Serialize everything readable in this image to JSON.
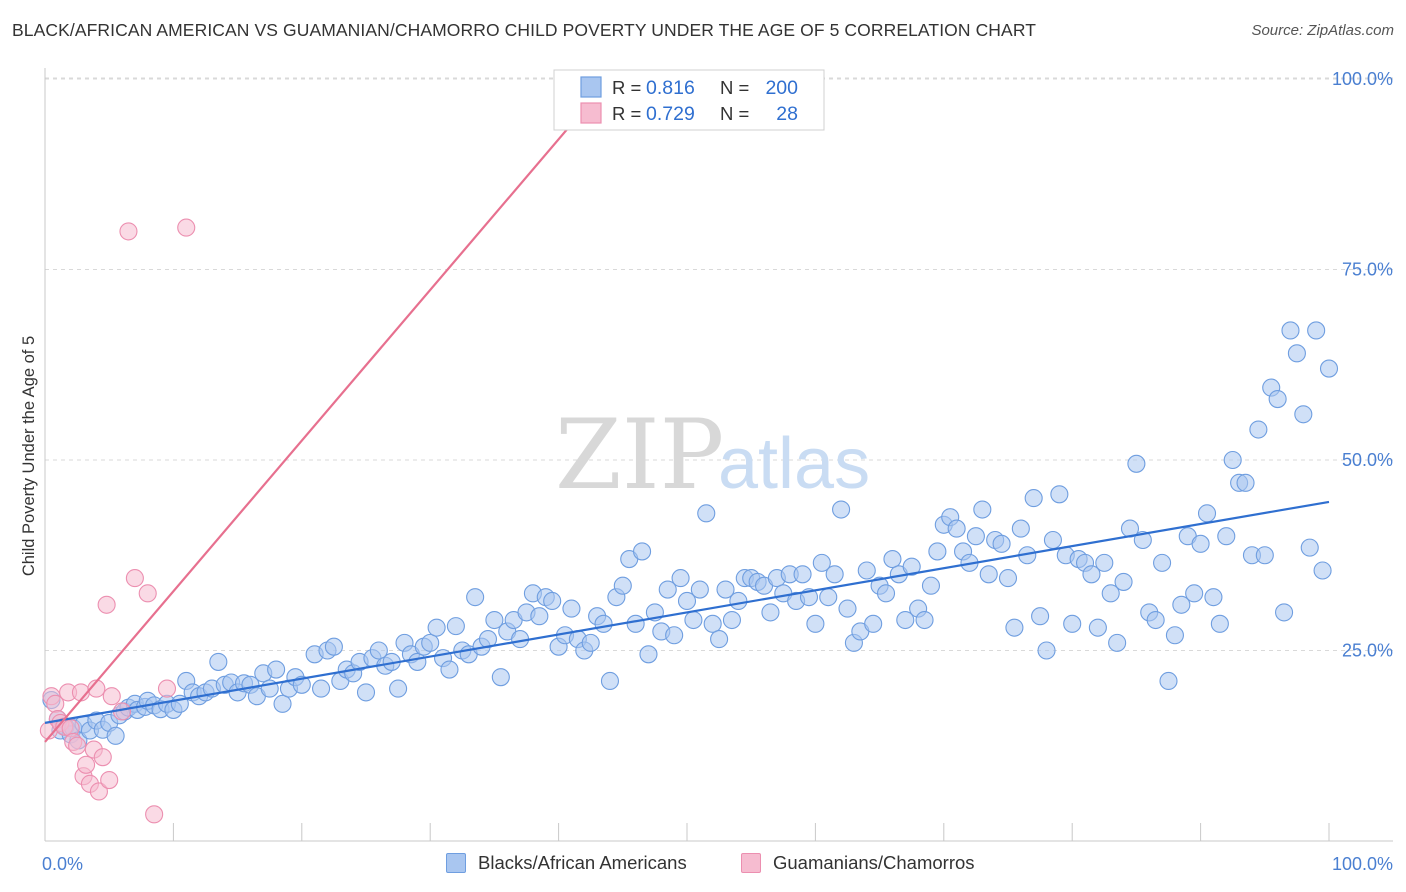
{
  "title": "BLACK/AFRICAN AMERICAN VS GUAMANIAN/CHAMORRO CHILD POVERTY UNDER THE AGE OF 5 CORRELATION CHART",
  "source": "Source: ZipAtlas.com",
  "watermark": {
    "zip": "ZIP",
    "atlas": "atlas"
  },
  "colors": {
    "blue_fill": "#a9c6f0",
    "blue_stroke": "#6f9ee0",
    "blue_line": "#2f6fd0",
    "pink_fill": "#f6bcd0",
    "pink_stroke": "#ec8fb0",
    "pink_line": "#e7708f",
    "grid": "#d9d9d9",
    "axis_text": "#4a7fd1"
  },
  "legend": {
    "row1": {
      "r_label": "R =",
      "r_value": "0.816",
      "n_label": "N =",
      "n_value": "200"
    },
    "row2": {
      "r_label": "R =",
      "r_value": "0.729",
      "n_label": "N =",
      "n_value": "28"
    }
  },
  "bottom_legend": {
    "blue": "Blacks/African Americans",
    "pink": "Guamanians/Chamorros"
  },
  "chart_data": {
    "type": "scatter",
    "title": "BLACK/AFRICAN AMERICAN VS GUAMANIAN/CHAMORRO CHILD POVERTY UNDER THE AGE OF 5 CORRELATION CHART",
    "xlabel": "",
    "ylabel": "Child Poverty Under the Age of 5",
    "xlim": [
      0,
      105
    ],
    "ylim": [
      0,
      105
    ],
    "x_tick_labels": [
      "0.0%",
      "100.0%"
    ],
    "y_ticks": [
      25,
      50,
      75,
      100
    ],
    "y_tick_labels": [
      "25.0%",
      "50.0%",
      "75.0%",
      "100.0%"
    ],
    "legend_position": "top-center",
    "series": [
      {
        "name": "Blacks/African Americans",
        "r": 0.816,
        "n": 200,
        "trend": [
          [
            0,
            15.5
          ],
          [
            100,
            44.5
          ]
        ],
        "points": [
          [
            0.5,
            18.5
          ],
          [
            1,
            16
          ],
          [
            1.2,
            14.5
          ],
          [
            1.6,
            15
          ],
          [
            2,
            14
          ],
          [
            2.2,
            14.8
          ],
          [
            2.6,
            13.2
          ],
          [
            3,
            15.3
          ],
          [
            3.5,
            14.5
          ],
          [
            4,
            15.8
          ],
          [
            4.5,
            14.6
          ],
          [
            5,
            15.5
          ],
          [
            5.5,
            13.8
          ],
          [
            5.8,
            16.5
          ],
          [
            6.2,
            17
          ],
          [
            6.5,
            17.5
          ],
          [
            7,
            18
          ],
          [
            7.2,
            17.2
          ],
          [
            7.8,
            17.6
          ],
          [
            8,
            18.4
          ],
          [
            8.5,
            17.8
          ],
          [
            9,
            17.3
          ],
          [
            9.5,
            18
          ],
          [
            10,
            17.2
          ],
          [
            10.5,
            18
          ],
          [
            11,
            21
          ],
          [
            11.5,
            19.5
          ],
          [
            12,
            19
          ],
          [
            12.5,
            19.5
          ],
          [
            13,
            20
          ],
          [
            13.5,
            23.5
          ],
          [
            14,
            20.5
          ],
          [
            14.5,
            20.8
          ],
          [
            15,
            19.5
          ],
          [
            15.5,
            20.7
          ],
          [
            16,
            20.5
          ],
          [
            16.5,
            19
          ],
          [
            17,
            22
          ],
          [
            17.5,
            20
          ],
          [
            18,
            22.5
          ],
          [
            18.5,
            18
          ],
          [
            19,
            20
          ],
          [
            19.5,
            21.5
          ],
          [
            20,
            20.5
          ],
          [
            21,
            24.5
          ],
          [
            21.5,
            20
          ],
          [
            22,
            25
          ],
          [
            22.5,
            25.5
          ],
          [
            23,
            21
          ],
          [
            23.5,
            22.5
          ],
          [
            24,
            22
          ],
          [
            24.5,
            23.5
          ],
          [
            25,
            19.5
          ],
          [
            25.5,
            24
          ],
          [
            26,
            25
          ],
          [
            26.5,
            23
          ],
          [
            27,
            23.5
          ],
          [
            27.5,
            20
          ],
          [
            28,
            26
          ],
          [
            28.5,
            24.5
          ],
          [
            29,
            23.5
          ],
          [
            29.5,
            25.5
          ],
          [
            30,
            26
          ],
          [
            30.5,
            28
          ],
          [
            31,
            24
          ],
          [
            31.5,
            22.5
          ],
          [
            32,
            28.2
          ],
          [
            32.5,
            25
          ],
          [
            33,
            24.5
          ],
          [
            33.5,
            32
          ],
          [
            34,
            25.5
          ],
          [
            34.5,
            26.5
          ],
          [
            35,
            29
          ],
          [
            35.5,
            21.5
          ],
          [
            36,
            27.5
          ],
          [
            36.5,
            29
          ],
          [
            37,
            26.5
          ],
          [
            37.5,
            30
          ],
          [
            38,
            32.5
          ],
          [
            38.5,
            29.5
          ],
          [
            39,
            32
          ],
          [
            39.5,
            31.5
          ],
          [
            40,
            25.5
          ],
          [
            40.5,
            27
          ],
          [
            41,
            30.5
          ],
          [
            41.5,
            26.5
          ],
          [
            42,
            25
          ],
          [
            42.5,
            26
          ],
          [
            43,
            29.5
          ],
          [
            43.5,
            28.5
          ],
          [
            44,
            21
          ],
          [
            44.5,
            32
          ],
          [
            45,
            33.5
          ],
          [
            45.5,
            37
          ],
          [
            46,
            28.5
          ],
          [
            46.5,
            38
          ],
          [
            47,
            24.5
          ],
          [
            47.5,
            30
          ],
          [
            48,
            27.5
          ],
          [
            48.5,
            33
          ],
          [
            49,
            27
          ],
          [
            49.5,
            34.5
          ],
          [
            50,
            31.5
          ],
          [
            50.5,
            29
          ],
          [
            51,
            33
          ],
          [
            51.5,
            43
          ],
          [
            52,
            28.5
          ],
          [
            52.5,
            26.5
          ],
          [
            53,
            33
          ],
          [
            53.5,
            29
          ],
          [
            54,
            31.5
          ],
          [
            54.5,
            34.5
          ],
          [
            55,
            34.5
          ],
          [
            55.5,
            34
          ],
          [
            56,
            33.5
          ],
          [
            56.5,
            30
          ],
          [
            57,
            34.5
          ],
          [
            57.5,
            32.5
          ],
          [
            58,
            35
          ],
          [
            58.5,
            31.5
          ],
          [
            59,
            35
          ],
          [
            59.5,
            32
          ],
          [
            60,
            28.5
          ],
          [
            60.5,
            36.5
          ],
          [
            61,
            32
          ],
          [
            61.5,
            35
          ],
          [
            62,
            43.5
          ],
          [
            62.5,
            30.5
          ],
          [
            63,
            26
          ],
          [
            63.5,
            27.5
          ],
          [
            64,
            35.5
          ],
          [
            64.5,
            28.5
          ],
          [
            65,
            33.5
          ],
          [
            65.5,
            32.5
          ],
          [
            66,
            37
          ],
          [
            66.5,
            35
          ],
          [
            67,
            29
          ],
          [
            67.5,
            36
          ],
          [
            68,
            30.5
          ],
          [
            68.5,
            29
          ],
          [
            69,
            33.5
          ],
          [
            69.5,
            38
          ],
          [
            70,
            41.5
          ],
          [
            70.5,
            42.5
          ],
          [
            71,
            41
          ],
          [
            71.5,
            38
          ],
          [
            72,
            36.5
          ],
          [
            72.5,
            40
          ],
          [
            73,
            43.5
          ],
          [
            73.5,
            35
          ],
          [
            74,
            39.5
          ],
          [
            74.5,
            39
          ],
          [
            75,
            34.5
          ],
          [
            75.5,
            28
          ],
          [
            76,
            41
          ],
          [
            76.5,
            37.5
          ],
          [
            77,
            45
          ],
          [
            77.5,
            29.5
          ],
          [
            78,
            25
          ],
          [
            78.5,
            39.5
          ],
          [
            79,
            45.5
          ],
          [
            79.5,
            37.5
          ],
          [
            80,
            28.5
          ],
          [
            80.5,
            37
          ],
          [
            81,
            36.5
          ],
          [
            81.5,
            35
          ],
          [
            82,
            28
          ],
          [
            82.5,
            36.5
          ],
          [
            83,
            32.5
          ],
          [
            83.5,
            26
          ],
          [
            84,
            34
          ],
          [
            84.5,
            41
          ],
          [
            85,
            49.5
          ],
          [
            85.5,
            39.5
          ],
          [
            86,
            30
          ],
          [
            86.5,
            29
          ],
          [
            87,
            36.5
          ],
          [
            87.5,
            21
          ],
          [
            88,
            27
          ],
          [
            88.5,
            31
          ],
          [
            89,
            40
          ],
          [
            89.5,
            32.5
          ],
          [
            90,
            39
          ],
          [
            90.5,
            43
          ],
          [
            91,
            32
          ],
          [
            91.5,
            28.5
          ],
          [
            92,
            40
          ],
          [
            92.5,
            50
          ],
          [
            93,
            47
          ],
          [
            93.5,
            47
          ],
          [
            94,
            37.5
          ],
          [
            94.5,
            54
          ],
          [
            95,
            37.5
          ],
          [
            95.5,
            59.5
          ],
          [
            96,
            58
          ],
          [
            96.5,
            30
          ],
          [
            97,
            67
          ],
          [
            97.5,
            64
          ],
          [
            98,
            56
          ],
          [
            98.5,
            38.5
          ],
          [
            99,
            67
          ],
          [
            99.5,
            35.5
          ],
          [
            100,
            62
          ]
        ]
      },
      {
        "name": "Guamanians/Chamorros",
        "r": 0.729,
        "n": 28,
        "trend": [
          [
            0,
            13
          ],
          [
            44,
            100
          ]
        ],
        "points": [
          [
            0.3,
            14.5
          ],
          [
            0.5,
            19
          ],
          [
            0.8,
            18
          ],
          [
            1,
            16
          ],
          [
            1.2,
            15.5
          ],
          [
            1.5,
            15
          ],
          [
            1.8,
            19.5
          ],
          [
            2,
            14.8
          ],
          [
            2.2,
            13
          ],
          [
            2.5,
            12.5
          ],
          [
            2.8,
            19.5
          ],
          [
            3,
            8.5
          ],
          [
            3.2,
            10
          ],
          [
            3.5,
            7.5
          ],
          [
            3.8,
            12
          ],
          [
            4,
            20
          ],
          [
            4.2,
            6.5
          ],
          [
            4.5,
            11
          ],
          [
            4.8,
            31
          ],
          [
            5,
            8
          ],
          [
            5.2,
            19
          ],
          [
            6,
            17
          ],
          [
            6.5,
            80
          ],
          [
            7,
            34.5
          ],
          [
            8,
            32.5
          ],
          [
            8.5,
            3.5
          ],
          [
            9.5,
            20
          ],
          [
            11,
            80.5
          ]
        ]
      }
    ]
  }
}
